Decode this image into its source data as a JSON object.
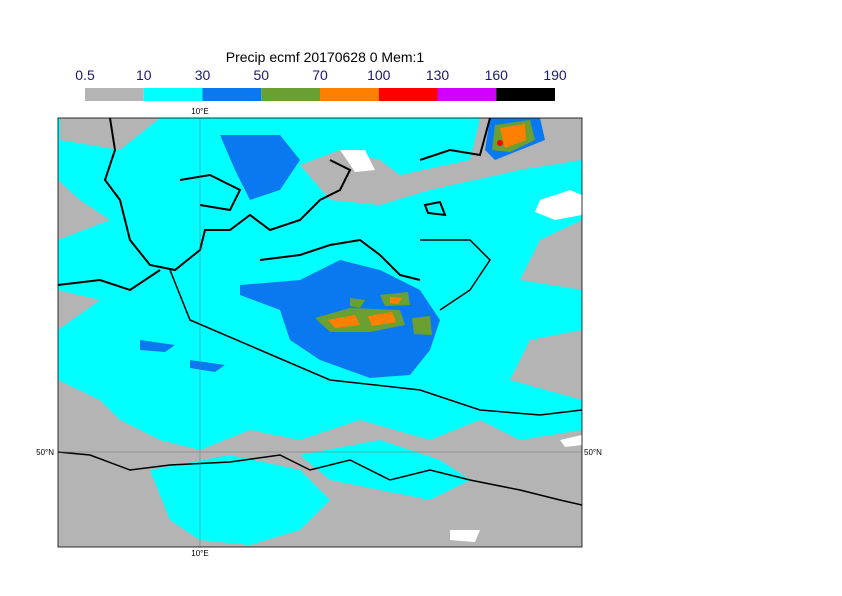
{
  "title": "Precip ecmf 20170628 0 Mem:1",
  "colorbar": {
    "levels": [
      0.5,
      10,
      30,
      50,
      70,
      100,
      130,
      160,
      190
    ],
    "colors": [
      "#b4b4b4",
      "#00ffff",
      "#0a78f0",
      "#6aa032",
      "#ff8000",
      "#ff0000",
      "#d200ff",
      "#000000"
    ]
  },
  "map": {
    "lon_label": "10°E",
    "lat_label": "50°N"
  }
}
